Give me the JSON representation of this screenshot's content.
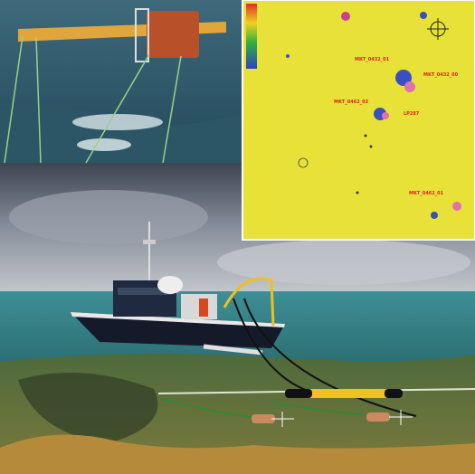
{
  "map_panel": {
    "labels": [
      "MKT_0432_01",
      "MKT_0432_00",
      "MKT_0462_02",
      "LP287",
      "MKT_0462_01"
    ]
  }
}
